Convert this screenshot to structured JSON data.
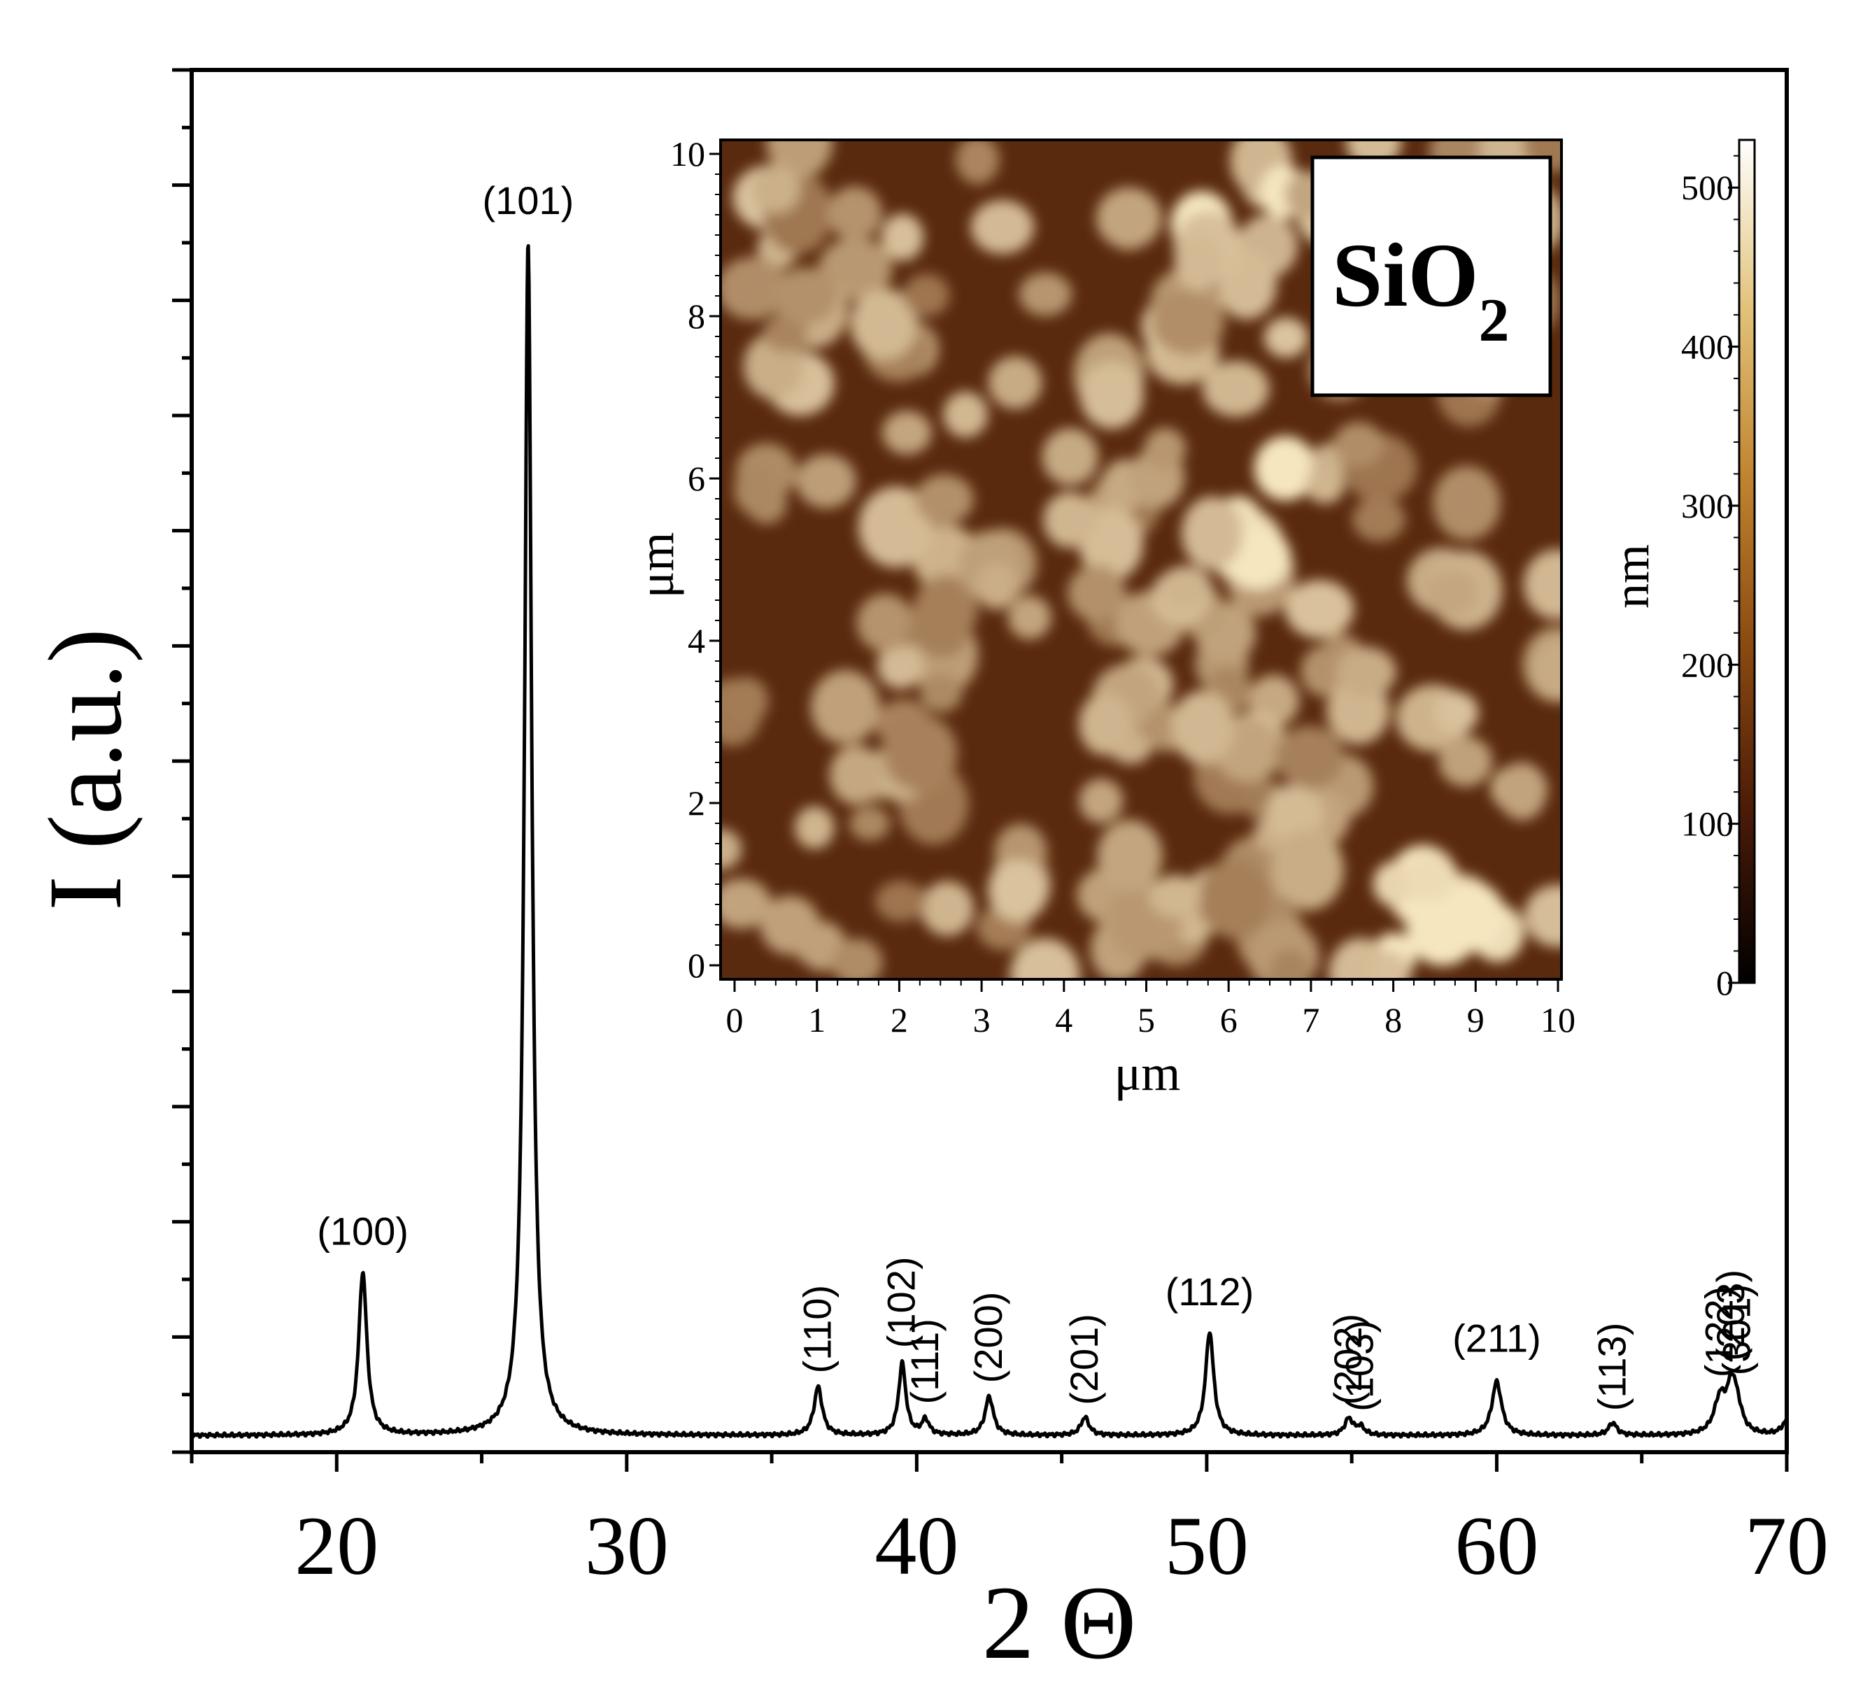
{
  "chart_data": [
    {
      "type": "line",
      "name": "xrd-pattern",
      "xlabel": "2 Θ",
      "ylabel": "I (a.u.)",
      "xlim": [
        15,
        70
      ],
      "ylim": [
        0,
        100
      ],
      "x_ticks": [
        20,
        30,
        40,
        50,
        60,
        70
      ],
      "x_tick_labels": [
        "20",
        "30",
        "40",
        "50",
        "60",
        "70"
      ],
      "baseline": 1.2,
      "series": [
        {
          "name": "SiO2",
          "peaks": [
            {
              "position": 20.9,
              "height": 11.8,
              "width": 0.17,
              "label": "(100)"
            },
            {
              "position": 26.6,
              "height": 86.3,
              "width": 0.15,
              "label": "(101)"
            },
            {
              "position": 36.6,
              "height": 3.5,
              "width": 0.17,
              "label": "(110)"
            },
            {
              "position": 39.5,
              "height": 5.2,
              "width": 0.15,
              "label": "(102)"
            },
            {
              "position": 40.3,
              "height": 1.1,
              "width": 0.15,
              "label": "(111)"
            },
            {
              "position": 42.5,
              "height": 2.8,
              "width": 0.17,
              "label": "(200)"
            },
            {
              "position": 45.8,
              "height": 1.3,
              "width": 0.17,
              "label": "(201)"
            },
            {
              "position": 50.1,
              "height": 7.5,
              "width": 0.17,
              "label": "(112)"
            },
            {
              "position": 54.9,
              "height": 1.2,
              "width": 0.17,
              "label": "(202)"
            },
            {
              "position": 55.3,
              "height": 0.6,
              "width": 0.17,
              "label": "(103)"
            },
            {
              "position": 60.0,
              "height": 3.9,
              "width": 0.2,
              "label": "(211)"
            },
            {
              "position": 64.0,
              "height": 0.9,
              "width": 0.17,
              "label": "(113)"
            },
            {
              "position": 67.7,
              "height": 2.5,
              "width": 0.24,
              "label": "(122)"
            },
            {
              "position": 68.1,
              "height": 3.2,
              "width": 0.2,
              "label": "(203)"
            },
            {
              "position": 68.3,
              "height": 1.4,
              "width": 0.2,
              "label": "(301)"
            },
            {
              "position": 70.0,
              "height": 1.0,
              "width": 0.2,
              "label": ""
            }
          ]
        }
      ]
    },
    {
      "type": "heatmap",
      "name": "afm-inset",
      "title": "SiO2",
      "title_main": "SiO",
      "title_sub": "2",
      "xlabel": "μm",
      "ylabel": "μm",
      "xlim": [
        0,
        10
      ],
      "ylim": [
        0,
        10
      ],
      "x_tick_labels": [
        "0",
        "1",
        "2",
        "3",
        "4",
        "5",
        "6",
        "7",
        "8",
        "9",
        "10"
      ],
      "y_tick_labels": [
        "0",
        "2",
        "4",
        "6",
        "8",
        "10"
      ],
      "colorbar": {
        "label": "nm",
        "range": [
          0,
          530
        ],
        "tick_labels": [
          "0",
          "100",
          "200",
          "300",
          "400",
          "500"
        ],
        "colors": [
          "#000000",
          "#4a1a08",
          "#8a4a10",
          "#c08430",
          "#e2c27a",
          "#ffffff"
        ]
      },
      "grain_color_low": "#6e3812",
      "grain_color_high": "#f5e6c0"
    }
  ]
}
